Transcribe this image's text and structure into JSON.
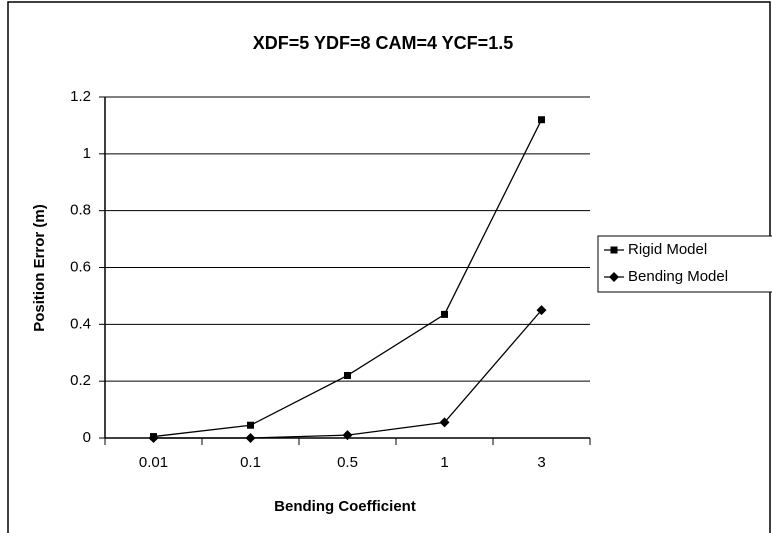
{
  "chart_data": {
    "type": "line",
    "title": "XDF=5  YDF=8   CAM=4   YCF=1.5",
    "x_label": "Bending Coefficient",
    "y_label": "Position Error (m)",
    "categories": [
      "0.01",
      "0.1",
      "0.5",
      "1",
      "3"
    ],
    "series": [
      {
        "name": "Rigid Model",
        "color": "#000000",
        "marker": "square",
        "values": [
          0.005,
          0.045,
          0.22,
          0.435,
          1.12
        ]
      },
      {
        "name": "Bending Model",
        "color": "#000000",
        "marker": "diamond",
        "values": [
          0,
          0,
          0.01,
          0.055,
          0.45
        ]
      }
    ],
    "ylim": [
      0,
      1.2
    ],
    "yticks": [
      0,
      0.2,
      0.4,
      0.6,
      0.8,
      1,
      1.2
    ],
    "grid": true,
    "legend": "right"
  }
}
